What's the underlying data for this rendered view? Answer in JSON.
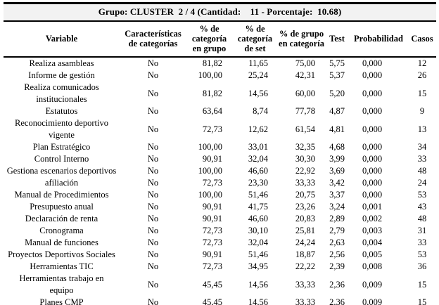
{
  "table": {
    "title": "Grupo: CLUSTER  2 / 4 (Cantidad:    11 - Porcentaje:  10.68)",
    "columns": [
      "Variable",
      "Características de categorías",
      "% de categoría en grupo",
      "% de categoría de set",
      "% de grupo en categoría",
      "Test",
      "Probabilidad",
      "Casos"
    ],
    "rows": [
      [
        "Realiza asambleas",
        "No",
        "81,82",
        "11,65",
        "75,00",
        "5,75",
        "0,000",
        "12"
      ],
      [
        "Informe de gestión",
        "No",
        "100,00",
        "25,24",
        "42,31",
        "5,37",
        "0,000",
        "26"
      ],
      [
        "Realiza comunicados\ninstitucionales",
        "No",
        "81,82",
        "14,56",
        "60,00",
        "5,20",
        "0,000",
        "15"
      ],
      [
        "Estatutos",
        "No",
        "63,64",
        "8,74",
        "77,78",
        "4,87",
        "0,000",
        "9"
      ],
      [
        "Reconocimiento deportivo\nvigente",
        "No",
        "72,73",
        "12,62",
        "61,54",
        "4,81",
        "0,000",
        "13"
      ],
      [
        "Plan Estratégico",
        "No",
        "100,00",
        "33,01",
        "32,35",
        "4,68",
        "0,000",
        "34"
      ],
      [
        "Control Interno",
        "No",
        "90,91",
        "32,04",
        "30,30",
        "3,99",
        "0,000",
        "33"
      ],
      [
        "Gestiona escenarios deportivos",
        "No",
        "100,00",
        "46,60",
        "22,92",
        "3,69",
        "0,000",
        "48"
      ],
      [
        "afiliación",
        "No",
        "72,73",
        "23,30",
        "33,33",
        "3,42",
        "0,000",
        "24"
      ],
      [
        "Manual de Procedimientos",
        "No",
        "100,00",
        "51,46",
        "20,75",
        "3,37",
        "0,000",
        "53"
      ],
      [
        "Presupuesto anual",
        "No",
        "90,91",
        "41,75",
        "23,26",
        "3,24",
        "0,001",
        "43"
      ],
      [
        "Declaración de renta",
        "No",
        "90,91",
        "46,60",
        "20,83",
        "2,89",
        "0,002",
        "48"
      ],
      [
        "Cronograma",
        "No",
        "72,73",
        "30,10",
        "25,81",
        "2,79",
        "0,003",
        "31"
      ],
      [
        "Manual de funciones",
        "No",
        "72,73",
        "32,04",
        "24,24",
        "2,63",
        "0,004",
        "33"
      ],
      [
        "Proyectos Deportivos Sociales",
        "No",
        "90,91",
        "51,46",
        "18,87",
        "2,56",
        "0,005",
        "53"
      ],
      [
        "Herramientas TIC",
        "No",
        "72,73",
        "34,95",
        "22,22",
        "2,39",
        "0,008",
        "36"
      ],
      [
        "Herramientas trabajo en\nequipo",
        "No",
        "45,45",
        "14,56",
        "33,33",
        "2,36",
        "0,009",
        "15"
      ],
      [
        "Planes CMP",
        "No",
        "45,45",
        "14,56",
        "33,33",
        "2,36",
        "0,009",
        "15"
      ]
    ],
    "colors": {
      "title_background": "#f2f2f2",
      "border": "#000000",
      "text": "#000000"
    }
  }
}
